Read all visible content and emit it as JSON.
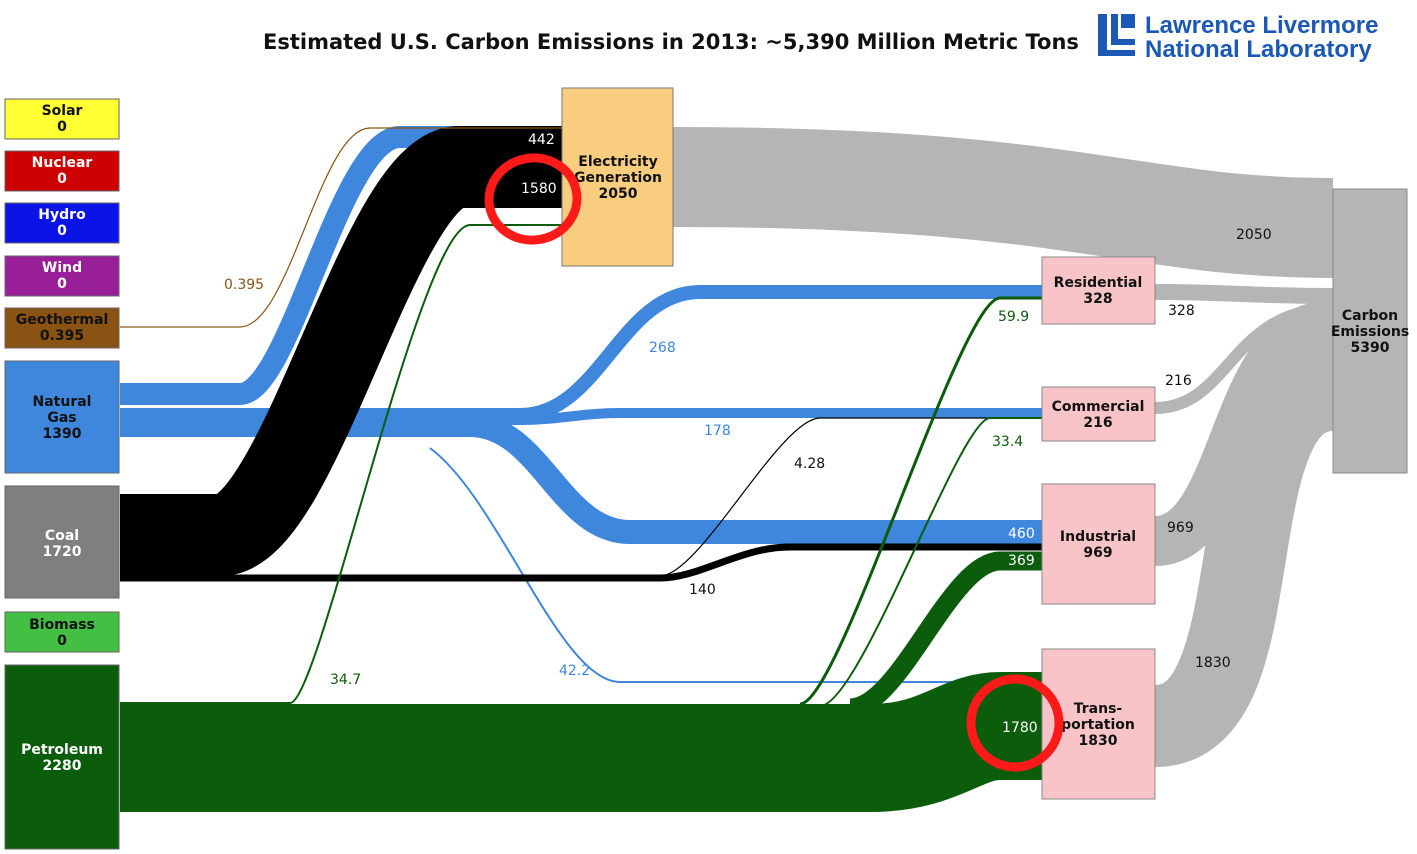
{
  "title": "Estimated U.S. Carbon Emissions in 2013: ~5,390 Million Metric Tons",
  "logo": {
    "line1": "Lawrence Livermore",
    "line2": "National Laboratory"
  },
  "colors": {
    "solar": "#ffff33",
    "nuclear": "#cc0000",
    "hydro": "#0a14e6",
    "wind": "#991f99",
    "geothermal": "#8a5314",
    "natural_gas": "#3f86dd",
    "coal": "#000000",
    "coal_box": "#7f7f7f",
    "biomass": "#43c043",
    "petroleum": "#0b5c0b",
    "electricity": "#f9cd80",
    "sector": "#f8c4c8",
    "emissions": "#b5b5b5",
    "highlight": "#ff1a1a"
  },
  "sources": [
    {
      "name": "Solar",
      "value": "0"
    },
    {
      "name": "Nuclear",
      "value": "0"
    },
    {
      "name": "Hydro",
      "value": "0"
    },
    {
      "name": "Wind",
      "value": "0"
    },
    {
      "name": "Geothermal",
      "value": "0.395"
    },
    {
      "name": [
        "Natural",
        "Gas"
      ],
      "value": "1390"
    },
    {
      "name": "Coal",
      "value": "1720"
    },
    {
      "name": "Biomass",
      "value": "0"
    },
    {
      "name": "Petroleum",
      "value": "2280"
    }
  ],
  "electricity": {
    "name": [
      "Electricity",
      "Generation"
    ],
    "value": "2050"
  },
  "sectors": [
    {
      "name": "Residential",
      "value": "328"
    },
    {
      "name": "Commercial",
      "value": "216"
    },
    {
      "name": "Industrial",
      "value": "969"
    },
    {
      "name": [
        "Trans-",
        "portation"
      ],
      "value": "1830"
    }
  ],
  "emissions": {
    "name": [
      "Carbon",
      "Emissions"
    ],
    "value": "5390"
  },
  "flows": [
    {
      "from": "Geothermal",
      "to": "Electricity Generation",
      "label": "0.395"
    },
    {
      "from": "Natural Gas",
      "to": "Electricity Generation",
      "label": "442"
    },
    {
      "from": "Coal",
      "to": "Electricity Generation",
      "label": "1580"
    },
    {
      "from": "Petroleum",
      "to": "Electricity Generation",
      "label": "34.7"
    },
    {
      "from": "Natural Gas",
      "to": "Residential",
      "label": "268"
    },
    {
      "from": "Natural Gas",
      "to": "Commercial",
      "label": "178"
    },
    {
      "from": "Natural Gas",
      "to": "Industrial",
      "label": "460"
    },
    {
      "from": "Natural Gas",
      "to": "Transportation",
      "label": "42.2"
    },
    {
      "from": "Coal",
      "to": "Commercial",
      "label": "4.28"
    },
    {
      "from": "Coal",
      "to": "Industrial",
      "label": "140"
    },
    {
      "from": "Petroleum",
      "to": "Residential",
      "label": "59.9"
    },
    {
      "from": "Petroleum",
      "to": "Commercial",
      "label": "33.4"
    },
    {
      "from": "Petroleum",
      "to": "Industrial",
      "label": "369"
    },
    {
      "from": "Petroleum",
      "to": "Transportation",
      "label": "1780"
    },
    {
      "from": "Electricity Generation",
      "to": "Carbon Emissions",
      "label": "2050"
    },
    {
      "from": "Residential",
      "to": "Carbon Emissions",
      "label": "328"
    },
    {
      "from": "Commercial",
      "to": "Carbon Emissions",
      "label": "216"
    },
    {
      "from": "Industrial",
      "to": "Carbon Emissions",
      "label": "969"
    },
    {
      "from": "Transportation",
      "to": "Carbon Emissions",
      "label": "1830"
    }
  ],
  "highlighted_values": [
    "1580",
    "1780"
  ]
}
